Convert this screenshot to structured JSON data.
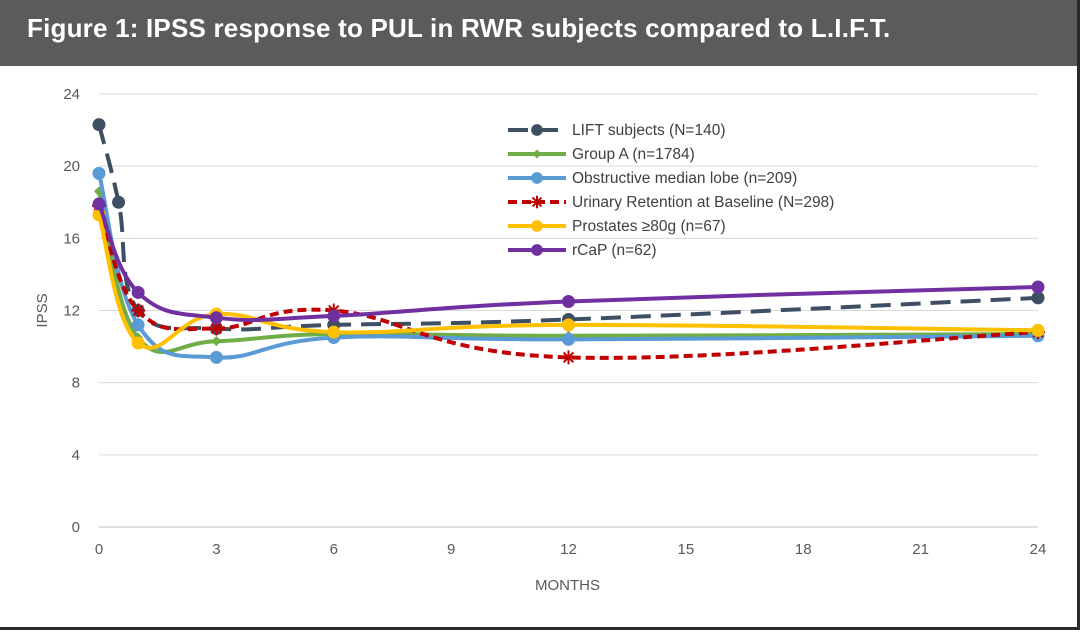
{
  "header": {
    "title": "Figure 1: IPSS response to PUL in RWR subjects compared to L.I.F.T."
  },
  "chart_data": {
    "type": "line",
    "title": "Figure 1: IPSS response to PUL in RWR subjects compared to L.I.F.T.",
    "xlabel": "MONTHS",
    "ylabel": "IPSS",
    "xlim": [
      0,
      24
    ],
    "ylim": [
      0,
      24
    ],
    "xticks": [
      0,
      3,
      6,
      9,
      12,
      15,
      18,
      21,
      24
    ],
    "yticks": [
      0,
      4,
      8,
      12,
      16,
      20,
      24
    ],
    "grid": "horizontal",
    "legend": "top-right",
    "series": [
      {
        "name": "LIFT subjects (N=140)",
        "color": "#3f4f63",
        "dash": "dashed",
        "marker": "circle",
        "points": [
          [
            0,
            22.3
          ],
          [
            0.5,
            18.0
          ],
          [
            1,
            12.0
          ],
          [
            3,
            11.0
          ],
          [
            6,
            11.2
          ],
          [
            12,
            11.5
          ],
          [
            24,
            12.7
          ]
        ]
      },
      {
        "name": "Group A (n=1784)",
        "color": "#70ad47",
        "dash": "solid",
        "marker": "diamond",
        "points": [
          [
            0,
            18.6
          ],
          [
            1,
            10.5
          ],
          [
            3,
            10.3
          ],
          [
            6,
            10.7
          ],
          [
            12,
            10.6
          ],
          [
            24,
            10.7
          ]
        ]
      },
      {
        "name": "Obstructive median lobe (n=209)",
        "color": "#5b9bd5",
        "dash": "solid",
        "marker": "circle",
        "points": [
          [
            0,
            19.6
          ],
          [
            1,
            11.2
          ],
          [
            3,
            9.4
          ],
          [
            6,
            10.5
          ],
          [
            12,
            10.4
          ],
          [
            24,
            10.6
          ]
        ]
      },
      {
        "name": "Urinary Retention at Baseline (N=298)",
        "color": "#c00000",
        "dash": "dotted",
        "marker": "star",
        "points": [
          [
            0,
            17.8
          ],
          [
            1,
            12.0
          ],
          [
            3,
            11.0
          ],
          [
            6,
            12.0
          ],
          [
            12,
            9.4
          ],
          [
            24,
            10.8
          ]
        ]
      },
      {
        "name": "Prostates ≥80g (n=67)",
        "color": "#ffc000",
        "dash": "solid",
        "marker": "circle",
        "points": [
          [
            0,
            17.3
          ],
          [
            1,
            10.2
          ],
          [
            3,
            11.8
          ],
          [
            6,
            10.8
          ],
          [
            12,
            11.2
          ],
          [
            24,
            10.9
          ]
        ]
      },
      {
        "name": "rCaP (n=62)",
        "color": "#7030a0",
        "dash": "solid",
        "marker": "circle",
        "points": [
          [
            0,
            17.9
          ],
          [
            1,
            13.0
          ],
          [
            3,
            11.6
          ],
          [
            6,
            11.7
          ],
          [
            12,
            12.5
          ],
          [
            24,
            13.3
          ]
        ]
      }
    ]
  }
}
